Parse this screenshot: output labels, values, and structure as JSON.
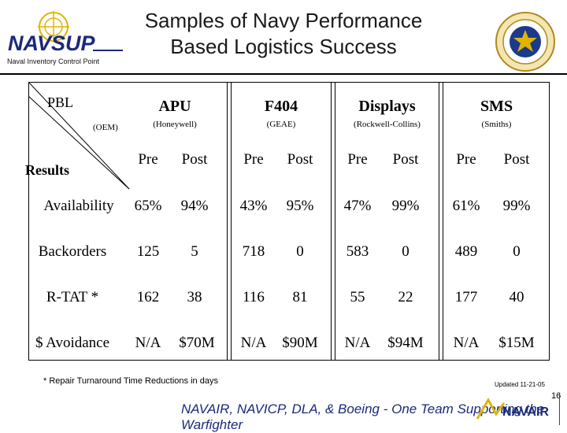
{
  "header": {
    "title": "Samples of Navy Performance Based Logistics Success",
    "logo_text": "NAVSUP",
    "logo_subtext": "Naval Inventory Control Point"
  },
  "table": {
    "corner_top": "PBL",
    "corner_middle": "(OEM)",
    "corner_bottom": "Results",
    "groups": [
      {
        "name": "APU",
        "sub": "(Honeywell)"
      },
      {
        "name": "F404",
        "sub": "(GEAE)"
      },
      {
        "name": "Displays",
        "sub": "(Rockwell-Collins)"
      },
      {
        "name": "SMS",
        "sub": "(Smiths)"
      }
    ],
    "pre_label": "Pre",
    "post_label": "Post",
    "rows": [
      {
        "label": "Availability",
        "values": [
          "65%",
          "94%",
          "43%",
          "95%",
          "47%",
          "99%",
          "61%",
          "99%"
        ]
      },
      {
        "label": "Backorders",
        "values": [
          "125",
          "5",
          "718",
          "0",
          "583",
          "0",
          "489",
          "0"
        ]
      },
      {
        "label": "R-TAT  *",
        "values": [
          "162",
          "38",
          "116",
          "81",
          "55",
          "22",
          "177",
          "40"
        ]
      },
      {
        "label": "$ Avoidance",
        "values": [
          "N/A",
          "$70M",
          "N/A",
          "$90M",
          "N/A",
          "$94M",
          "N/A",
          "$15M"
        ]
      }
    ]
  },
  "footer": {
    "footnote": "*  Repair Turnaround Time Reductions in days",
    "updated": "Updated 11-21-05",
    "tagline": "NAVAIR, NAVICP, DLA, & Boeing - One Team Supporting the Warfighter",
    "page_number": "16",
    "navair_logo_text": "NAVAIR"
  }
}
